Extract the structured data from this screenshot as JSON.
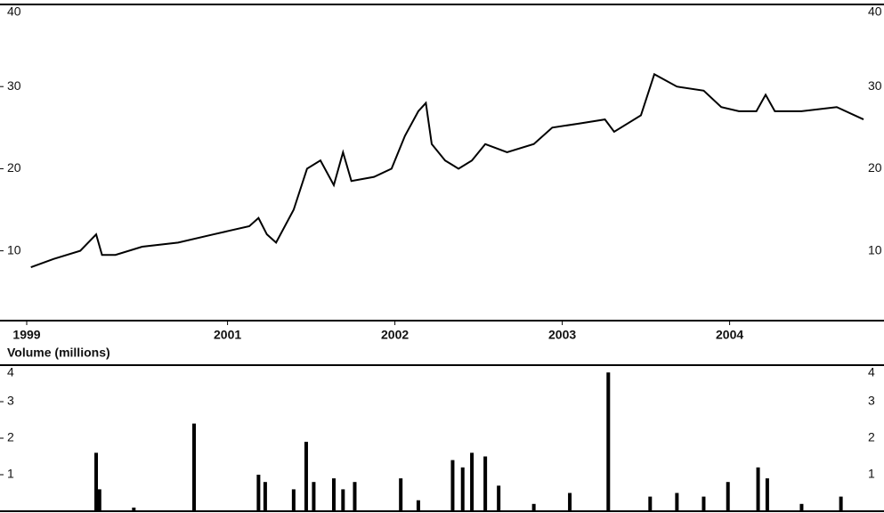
{
  "chart_data": [
    {
      "type": "line",
      "x": [
        0.5,
        3.2,
        6.4,
        8.3,
        9.0,
        10.6,
        13.8,
        18.1,
        22.3,
        26.6,
        27.7,
        28.7,
        29.8,
        31.9,
        33.5,
        35.1,
        36.7,
        37.8,
        38.8,
        41.5,
        43.6,
        45.2,
        46.8,
        47.7,
        48.4,
        50.0,
        51.6,
        53.2,
        54.8,
        57.4,
        60.6,
        62.8,
        66.0,
        69.1,
        70.2,
        73.4,
        75.0,
        77.7,
        80.9,
        83.0,
        85.1,
        87.2,
        88.3,
        89.4,
        92.6,
        96.8,
        100.0
      ],
      "values": [
        8,
        9,
        10,
        12,
        9.5,
        9.5,
        10.5,
        11,
        12,
        13,
        14,
        12,
        11,
        15,
        20,
        21,
        18,
        22,
        18.5,
        19,
        20,
        24,
        27,
        28,
        23,
        21,
        20,
        21,
        23,
        22,
        23,
        25,
        25.5,
        26,
        24.5,
        26.5,
        31.5,
        30,
        29.5,
        27.5,
        27,
        27,
        29,
        27,
        27,
        27.5,
        26
      ],
      "color": "#000000",
      "xlim": [
        0,
        100
      ],
      "xticks": [
        {
          "value": 0,
          "label": "1999"
        },
        {
          "value": 24,
          "label": "2001"
        },
        {
          "value": 44,
          "label": "2002"
        },
        {
          "value": 64,
          "label": "2003"
        },
        {
          "value": 84,
          "label": "2004"
        }
      ],
      "ylim": [
        1.5,
        40
      ],
      "yticks": [
        10,
        20,
        30,
        40
      ]
    },
    {
      "type": "bar",
      "title": "Volume (millions)",
      "x": [
        8.3,
        8.7,
        12.8,
        20.0,
        27.7,
        28.5,
        31.9,
        33.4,
        34.3,
        36.7,
        37.8,
        39.2,
        44.7,
        46.8,
        50.9,
        52.1,
        53.2,
        54.8,
        56.4,
        60.6,
        64.9,
        69.5,
        74.5,
        77.7,
        80.9,
        83.8,
        87.4,
        88.5,
        92.6,
        97.3
      ],
      "values": [
        1.6,
        0.6,
        0.1,
        2.4,
        1.0,
        0.8,
        0.6,
        1.9,
        0.8,
        0.9,
        0.6,
        0.8,
        0.9,
        0.3,
        1.4,
        1.2,
        1.6,
        1.5,
        0.7,
        0.2,
        0.5,
        3.8,
        0.4,
        0.5,
        0.4,
        0.8,
        1.2,
        0.9,
        0.2,
        0.4
      ],
      "color": "#000000",
      "xlim": [
        0,
        100
      ],
      "ylim": [
        0,
        4
      ],
      "yticks": [
        1,
        2,
        3,
        4
      ]
    }
  ]
}
